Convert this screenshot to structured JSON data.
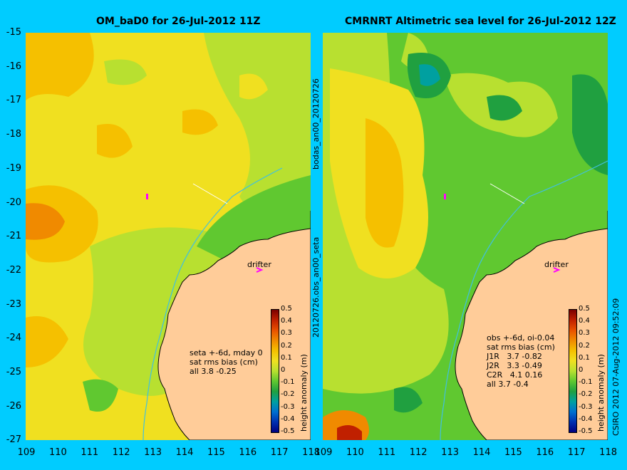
{
  "left_panel": {
    "title": "OM_baD0 for 26-Jul-2012 11Z",
    "info": [
      "seta +-6d, mday 0",
      "sat rms bias (cm)",
      "all 3.8 -0.25"
    ],
    "drifter_label": "drifter",
    "colorbar_label": "height anomaly (m)"
  },
  "right_panel": {
    "title": "CMRNRT Altimetric sea level  for 26-Jul-2012 12Z",
    "info": [
      "obs +-6d, oi-0.04",
      "sat rms bias (cm)",
      "J1R   3.7 -0.82",
      "J2R   3.3 -0.49",
      "C2R   4.1 0.16",
      "all 3.7 -0.4"
    ],
    "drifter_label": "drifter",
    "colorbar_label": "height anomaly (m)"
  },
  "center_labels": {
    "top": "bodas_an00_20120726",
    "bottom": "20120726.obs_an00_seta"
  },
  "copyright": "CSIRO 2012   07-Aug-2012 09:52:09",
  "y_ticks": [
    "-15",
    "-16",
    "-17",
    "-18",
    "-19",
    "-20",
    "-21",
    "-22",
    "-23",
    "-24",
    "-25",
    "-26",
    "-27"
  ],
  "x_ticks_left": [
    "109",
    "110",
    "111",
    "112",
    "113",
    "114",
    "115",
    "116",
    "117",
    "118"
  ],
  "x_ticks_right": [
    "109",
    "110",
    "111",
    "112",
    "113",
    "114",
    "115",
    "116",
    "117",
    "118"
  ],
  "colorbar_ticks": [
    "0.5",
    "0.4",
    "0.3",
    "0.2",
    "0.1",
    "0",
    "-0.1",
    "-0.2",
    "-0.3",
    "-0.4",
    "-0.5"
  ],
  "colors": {
    "background": "#00ccff",
    "land": "#ffcc99",
    "colorbar": [
      "#7a0000",
      "#c02000",
      "#e85000",
      "#f08a00",
      "#f5c000",
      "#f0e020",
      "#b8e030",
      "#60c830",
      "#20a040",
      "#00a0a0",
      "#0070d0",
      "#0030b0",
      "#000080"
    ],
    "coast_line": "#000000",
    "shelf_line": "#40c0e0",
    "drifter": "#ff00ff"
  }
}
